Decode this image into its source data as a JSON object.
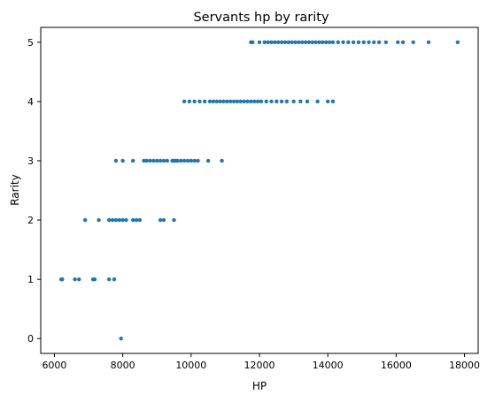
{
  "chart_data": {
    "type": "scatter",
    "title": "Servants hp by rarity",
    "xlabel": "HP",
    "ylabel": "Rarity",
    "xlim": [
      5600,
      18400
    ],
    "ylim": [
      -0.25,
      5.25
    ],
    "xticks": [
      6000,
      8000,
      10000,
      12000,
      14000,
      16000,
      18000
    ],
    "xtick_labels": [
      "6000",
      "8000",
      "10000",
      "12000",
      "14000",
      "16000",
      "18000"
    ],
    "yticks": [
      0,
      1,
      2,
      3,
      4,
      5
    ],
    "ytick_labels": [
      "0",
      "1",
      "2",
      "3",
      "4",
      "5"
    ],
    "grid": false,
    "point_color": "#1f77b4",
    "series": [
      {
        "points": [
          {
            "x": 7950,
            "y": 0
          },
          {
            "x": 6200,
            "y": 1
          },
          {
            "x": 6230,
            "y": 1
          },
          {
            "x": 6600,
            "y": 1
          },
          {
            "x": 6720,
            "y": 1
          },
          {
            "x": 7130,
            "y": 1
          },
          {
            "x": 7180,
            "y": 1
          },
          {
            "x": 7600,
            "y": 1
          },
          {
            "x": 7750,
            "y": 1
          },
          {
            "x": 6900,
            "y": 2
          },
          {
            "x": 7300,
            "y": 2
          },
          {
            "x": 7600,
            "y": 2
          },
          {
            "x": 7700,
            "y": 2
          },
          {
            "x": 7800,
            "y": 2
          },
          {
            "x": 7900,
            "y": 2
          },
          {
            "x": 8000,
            "y": 2
          },
          {
            "x": 8100,
            "y": 2
          },
          {
            "x": 8300,
            "y": 2
          },
          {
            "x": 8400,
            "y": 2
          },
          {
            "x": 8500,
            "y": 2
          },
          {
            "x": 9100,
            "y": 2
          },
          {
            "x": 9200,
            "y": 2
          },
          {
            "x": 9500,
            "y": 2
          },
          {
            "x": 7800,
            "y": 3
          },
          {
            "x": 8000,
            "y": 3
          },
          {
            "x": 8300,
            "y": 3
          },
          {
            "x": 8620,
            "y": 3
          },
          {
            "x": 8700,
            "y": 3
          },
          {
            "x": 8800,
            "y": 3
          },
          {
            "x": 8900,
            "y": 3
          },
          {
            "x": 9000,
            "y": 3
          },
          {
            "x": 9100,
            "y": 3
          },
          {
            "x": 9200,
            "y": 3
          },
          {
            "x": 9300,
            "y": 3
          },
          {
            "x": 9450,
            "y": 3
          },
          {
            "x": 9500,
            "y": 3
          },
          {
            "x": 9550,
            "y": 3
          },
          {
            "x": 9600,
            "y": 3
          },
          {
            "x": 9700,
            "y": 3
          },
          {
            "x": 9800,
            "y": 3
          },
          {
            "x": 9900,
            "y": 3
          },
          {
            "x": 10000,
            "y": 3
          },
          {
            "x": 10100,
            "y": 3
          },
          {
            "x": 10200,
            "y": 3
          },
          {
            "x": 10500,
            "y": 3
          },
          {
            "x": 10900,
            "y": 3
          },
          {
            "x": 9800,
            "y": 4
          },
          {
            "x": 9950,
            "y": 4
          },
          {
            "x": 10100,
            "y": 4
          },
          {
            "x": 10250,
            "y": 4
          },
          {
            "x": 10400,
            "y": 4
          },
          {
            "x": 10550,
            "y": 4
          },
          {
            "x": 10650,
            "y": 4
          },
          {
            "x": 10750,
            "y": 4
          },
          {
            "x": 10850,
            "y": 4
          },
          {
            "x": 10950,
            "y": 4
          },
          {
            "x": 11050,
            "y": 4
          },
          {
            "x": 11150,
            "y": 4
          },
          {
            "x": 11250,
            "y": 4
          },
          {
            "x": 11350,
            "y": 4
          },
          {
            "x": 11450,
            "y": 4
          },
          {
            "x": 11550,
            "y": 4
          },
          {
            "x": 11650,
            "y": 4
          },
          {
            "x": 11750,
            "y": 4
          },
          {
            "x": 11850,
            "y": 4
          },
          {
            "x": 11950,
            "y": 4
          },
          {
            "x": 12050,
            "y": 4
          },
          {
            "x": 12200,
            "y": 4
          },
          {
            "x": 12350,
            "y": 4
          },
          {
            "x": 12500,
            "y": 4
          },
          {
            "x": 12650,
            "y": 4
          },
          {
            "x": 12800,
            "y": 4
          },
          {
            "x": 13000,
            "y": 4
          },
          {
            "x": 13200,
            "y": 4
          },
          {
            "x": 13400,
            "y": 4
          },
          {
            "x": 13700,
            "y": 4
          },
          {
            "x": 14000,
            "y": 4
          },
          {
            "x": 14150,
            "y": 4
          },
          {
            "x": 11750,
            "y": 5
          },
          {
            "x": 11800,
            "y": 5
          },
          {
            "x": 12000,
            "y": 5
          },
          {
            "x": 12150,
            "y": 5
          },
          {
            "x": 12250,
            "y": 5
          },
          {
            "x": 12350,
            "y": 5
          },
          {
            "x": 12450,
            "y": 5
          },
          {
            "x": 12550,
            "y": 5
          },
          {
            "x": 12650,
            "y": 5
          },
          {
            "x": 12750,
            "y": 5
          },
          {
            "x": 12850,
            "y": 5
          },
          {
            "x": 12950,
            "y": 5
          },
          {
            "x": 13050,
            "y": 5
          },
          {
            "x": 13150,
            "y": 5
          },
          {
            "x": 13250,
            "y": 5
          },
          {
            "x": 13350,
            "y": 5
          },
          {
            "x": 13450,
            "y": 5
          },
          {
            "x": 13550,
            "y": 5
          },
          {
            "x": 13650,
            "y": 5
          },
          {
            "x": 13750,
            "y": 5
          },
          {
            "x": 13850,
            "y": 5
          },
          {
            "x": 13950,
            "y": 5
          },
          {
            "x": 14050,
            "y": 5
          },
          {
            "x": 14150,
            "y": 5
          },
          {
            "x": 14300,
            "y": 5
          },
          {
            "x": 14450,
            "y": 5
          },
          {
            "x": 14600,
            "y": 5
          },
          {
            "x": 14750,
            "y": 5
          },
          {
            "x": 14900,
            "y": 5
          },
          {
            "x": 15050,
            "y": 5
          },
          {
            "x": 15200,
            "y": 5
          },
          {
            "x": 15350,
            "y": 5
          },
          {
            "x": 15500,
            "y": 5
          },
          {
            "x": 15700,
            "y": 5
          },
          {
            "x": 16050,
            "y": 5
          },
          {
            "x": 16200,
            "y": 5
          },
          {
            "x": 16500,
            "y": 5
          },
          {
            "x": 16950,
            "y": 5
          },
          {
            "x": 17800,
            "y": 5
          }
        ]
      }
    ]
  }
}
